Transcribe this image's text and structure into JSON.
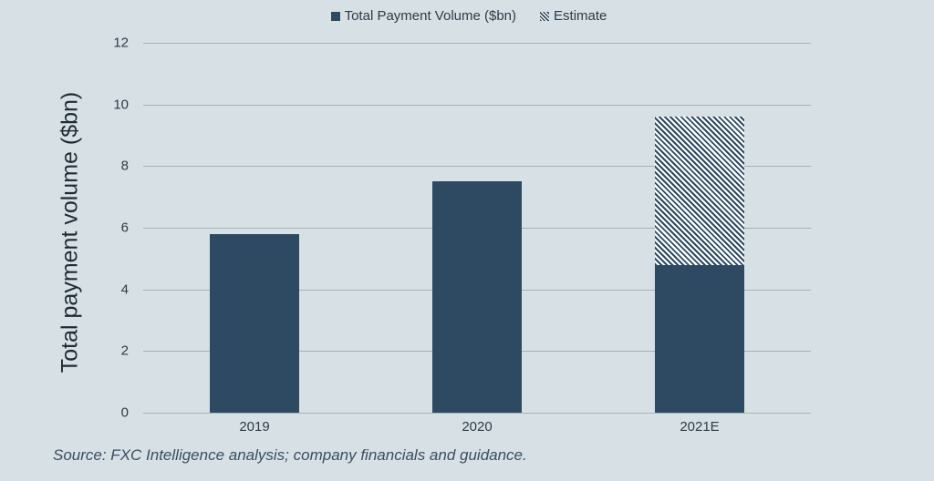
{
  "legend": {
    "items": [
      {
        "label": "Total Payment Volume ($bn)",
        "icon": "solid-square-icon"
      },
      {
        "label": "Estimate",
        "icon": "hatched-square-icon"
      }
    ]
  },
  "axes": {
    "ylabel": "Total payment volume ($bn)",
    "yticks": [
      "0",
      "2",
      "4",
      "6",
      "8",
      "10",
      "12"
    ],
    "xticks": [
      "2019",
      "2020",
      "2021E"
    ]
  },
  "source": "Source: FXC Intelligence analysis; company financials and guidance.",
  "colors": {
    "background": "#d6e0e5",
    "bar": "#2d4a62",
    "hatch_light": "#ffffff",
    "grid": "#a7b2b9"
  },
  "chart_data": {
    "type": "bar",
    "stacked": true,
    "title": "",
    "categories": [
      "2019",
      "2020",
      "2021E"
    ],
    "series": [
      {
        "name": "Total Payment Volume ($bn)",
        "values": [
          5.8,
          7.5,
          4.8
        ]
      },
      {
        "name": "Estimate",
        "values": [
          0,
          0,
          4.8
        ]
      }
    ],
    "totals": [
      5.8,
      7.5,
      9.6
    ],
    "xlabel": "",
    "ylabel": "Total payment volume ($bn)",
    "ylim": [
      0,
      12
    ],
    "yticks": [
      0,
      2,
      4,
      6,
      8,
      10,
      12
    ],
    "grid": true,
    "legend_position": "top",
    "annotations": [
      "Source: FXC Intelligence analysis; company financials and guidance."
    ]
  }
}
